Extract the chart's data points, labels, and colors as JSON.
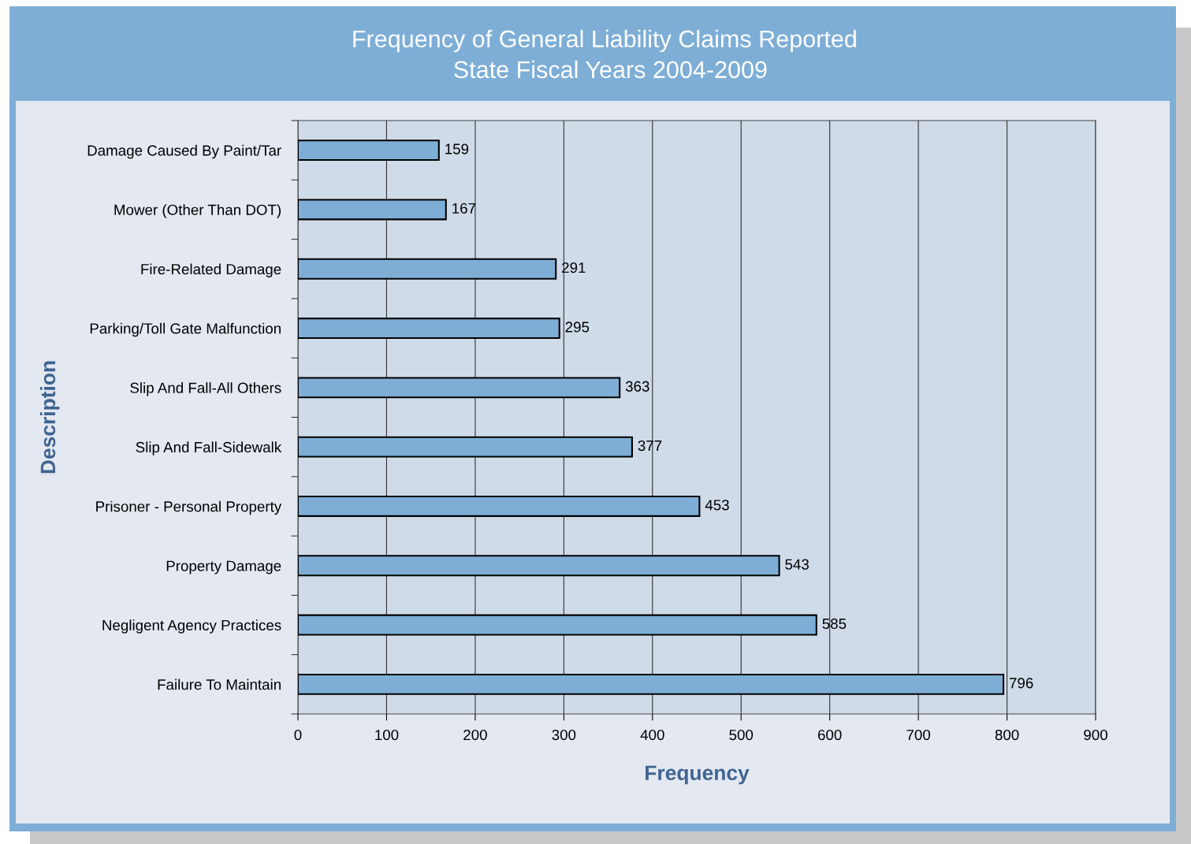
{
  "chart_data": {
    "type": "bar",
    "orientation": "horizontal",
    "title": "Frequency of General Liability Claims Reported",
    "subtitle": "State Fiscal Years 2004-2009",
    "xlabel": "Frequency",
    "ylabel": "Description",
    "categories": [
      "Damage Caused By Paint/Tar",
      "Mower (Other Than DOT)",
      "Fire-Related Damage",
      "Parking/Toll Gate Malfunction",
      "Slip And Fall-All Others",
      "Slip And Fall-Sidewalk",
      "Prisoner - Personal Property",
      "Property Damage",
      "Negligent Agency Practices",
      "Failure To Maintain"
    ],
    "values": [
      159,
      167,
      291,
      295,
      363,
      377,
      453,
      543,
      585,
      796
    ],
    "color": "#7eaed6",
    "xlim": [
      0,
      900
    ],
    "xticks": [
      0,
      100,
      200,
      300,
      400,
      500,
      600,
      700,
      800,
      900
    ],
    "grid": "x",
    "data_labels": true,
    "legend": false
  }
}
